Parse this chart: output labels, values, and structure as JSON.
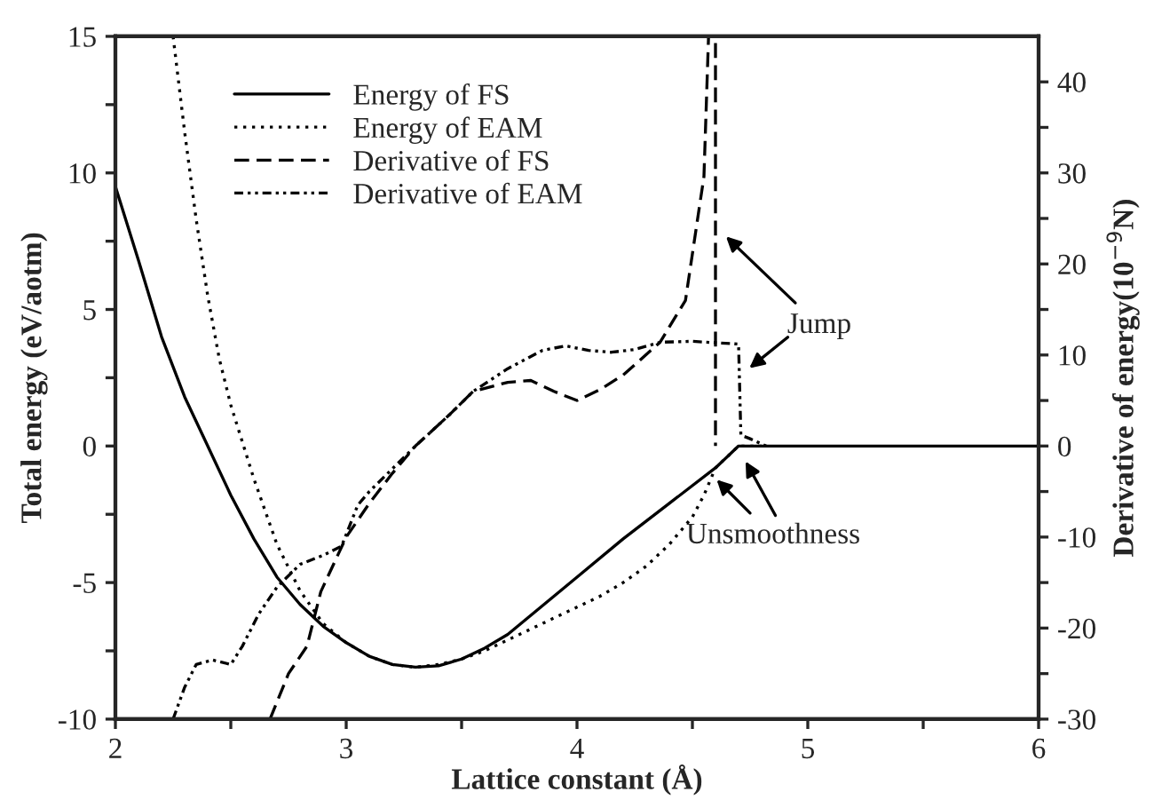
{
  "chart_data": {
    "type": "line",
    "xlabel": "Lattice constant (Å)",
    "ylabel": "Total energy (eV/aotm)",
    "y2label": "Derivative of energy(10$^{−9}$N)",
    "xlim": [
      2,
      6
    ],
    "xticks": [
      2,
      {
        "value": 2.5,
        "label": null
      },
      3,
      {
        "value": 3.5,
        "label": null
      },
      4,
      {
        "value": 4.5,
        "label": null
      },
      5,
      {
        "value": 5.5,
        "label": null
      },
      6
    ],
    "ylim": [
      -10,
      15
    ],
    "yticks": [
      -10,
      {
        "value": -7.5,
        "label": null
      },
      -5,
      {
        "value": -2.5,
        "label": null
      },
      0,
      {
        "value": 2.5,
        "label": null
      },
      5,
      {
        "value": 7.5,
        "label": null
      },
      10,
      {
        "value": 12.5,
        "label": null
      },
      15
    ],
    "y2lim": [
      -30,
      45
    ],
    "y2ticks": [
      -30,
      {
        "value": -25,
        "label": null
      },
      -20,
      {
        "value": -15,
        "label": null
      },
      -10,
      {
        "value": -5,
        "label": null
      },
      0,
      {
        "value": 5,
        "label": null
      },
      10,
      {
        "value": 15,
        "label": null
      },
      20,
      {
        "value": 25,
        "label": null
      },
      30,
      {
        "value": 35,
        "label": null
      },
      40
    ],
    "grid": false,
    "legend": "top left",
    "marker": "none",
    "series": [
      {
        "name": "Energy of FS",
        "color": "#000000",
        "line_style": "solid",
        "x": [
          2,
          2.1,
          2.2,
          2.3,
          2.4,
          2.5,
          2.6,
          2.7,
          2.8,
          2.9,
          3.0,
          3.1,
          3.2,
          3.3,
          3.4,
          3.5,
          3.6,
          3.7,
          3.8,
          3.9,
          4.0,
          4.2,
          4.4,
          4.6,
          4.7,
          6
        ],
        "values": [
          9.5,
          6.8,
          4.0,
          1.8,
          0,
          -1.8,
          -3.4,
          -4.8,
          -5.8,
          -6.6,
          -7.2,
          -7.7,
          -8.0,
          -8.1,
          -8.05,
          -7.8,
          -7.4,
          -6.9,
          -6.2,
          -5.5,
          -4.8,
          -3.4,
          -2.1,
          -0.8,
          0,
          0
        ]
      },
      {
        "name": "Energy of EAM",
        "color": "#000000",
        "line_style": "dotted",
        "x": [
          2.25,
          2.3,
          2.35,
          2.4,
          2.45,
          2.5,
          2.6,
          2.7,
          2.8,
          2.9,
          3.0,
          3.1,
          3.2,
          3.3,
          3.4,
          3.5,
          3.6,
          3.7,
          3.8,
          3.9,
          4.0,
          4.1,
          4.2,
          4.3,
          4.4,
          4.5,
          4.55,
          4.6,
          4.7,
          4.8
        ],
        "values": [
          15,
          11.5,
          8.3,
          5.5,
          3.2,
          1.5,
          -1.2,
          -3.6,
          -5.3,
          -6.5,
          -7.2,
          -7.7,
          -8.0,
          -8.1,
          -8.0,
          -7.8,
          -7.5,
          -7.1,
          -6.7,
          -6.3,
          -5.9,
          -5.5,
          -5.0,
          -4.4,
          -3.6,
          -2.6,
          -1.8,
          -0.8,
          0,
          0
        ]
      },
      {
        "name": "Derivative of FS",
        "color": "#000000",
        "line_style": "dashed",
        "axis": "y2",
        "x": [
          2.67,
          2.75,
          2.83,
          2.89,
          3.0,
          3.1,
          3.2,
          3.3,
          3.45,
          3.55,
          3.7,
          3.8,
          3.9,
          4.0,
          4.1,
          4.2,
          4.36,
          4.47,
          4.55,
          4.57,
          4.6,
          4.6
        ],
        "values": [
          -30,
          -25,
          -22,
          -16,
          -10,
          -6.3,
          -3,
          0,
          3.5,
          6,
          7,
          7.2,
          6,
          5,
          6.2,
          7.8,
          11.4,
          16,
          29.6,
          45,
          45,
          0
        ]
      },
      {
        "name": "Derivative of EAM",
        "color": "#000000",
        "line_style": "dashdot",
        "axis": "y2",
        "x": [
          2.25,
          2.3,
          2.35,
          2.42,
          2.5,
          2.55,
          2.62,
          2.7,
          2.8,
          2.9,
          2.98,
          3.05,
          3.1,
          3.2,
          3.3,
          3.45,
          3.55,
          3.7,
          3.85,
          3.95,
          4.05,
          4.15,
          4.25,
          4.36,
          4.5,
          4.7,
          4.71,
          4.75,
          4.82
        ],
        "values": [
          -30,
          -26.5,
          -24,
          -23.5,
          -24,
          -22,
          -18.5,
          -15.5,
          -13,
          -12,
          -11,
          -6.5,
          -5,
          -2.5,
          0,
          3.5,
          6,
          8.5,
          10.5,
          11,
          10.5,
          10.3,
          10.6,
          11.4,
          11.5,
          11.2,
          1.2,
          0.8,
          0
        ]
      }
    ],
    "annotations": [
      {
        "text": "Jump",
        "x": 4.63,
        "y": 7.8
      },
      {
        "text": "Unsmoothness",
        "x": 4.59,
        "y": -1.1
      }
    ]
  }
}
